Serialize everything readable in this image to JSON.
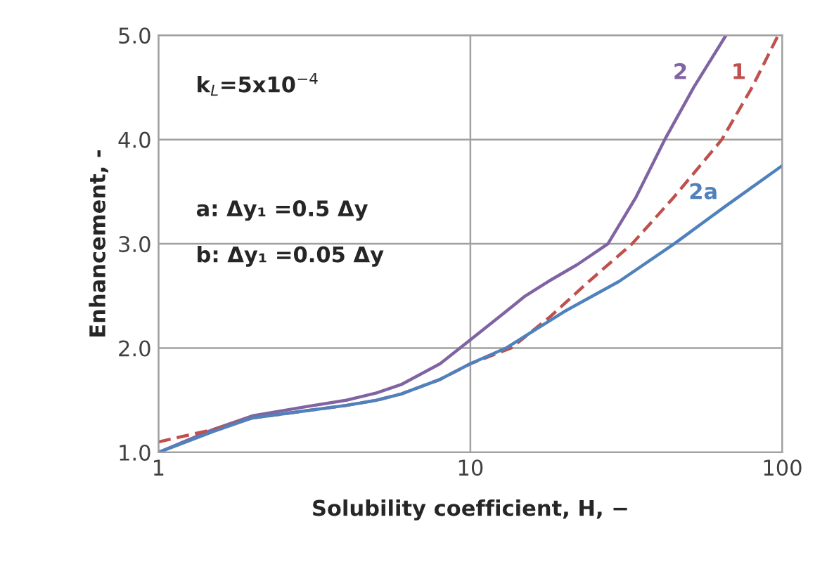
{
  "chart_data": {
    "type": "line",
    "xlabel": "Solubility coefficient, H, −",
    "ylabel": "Enhancement, -",
    "log": "x",
    "xlim": [
      1,
      100
    ],
    "xticks": [
      1,
      10,
      100
    ],
    "ylim": [
      1.0,
      5.0
    ],
    "yticks": [
      {
        "value": 1.0,
        "label": "1.0"
      },
      {
        "value": 2.0,
        "label": "2.0"
      },
      {
        "value": 3.0,
        "label": "3.0"
      },
      {
        "value": 4.0,
        "label": "4.0"
      },
      {
        "value": 5.0,
        "label": "5.0"
      }
    ],
    "grid": true,
    "legend": false,
    "annotations": [
      "k$_{L}$=5x10$^{−4}$",
      "a: Δy₁ =0.5 Δy",
      "b: Δy₁ =0.05 Δy"
    ],
    "series": [
      {
        "name": "2",
        "color": "#8064a2",
        "line_style": "solid",
        "x": [
          1,
          1.5,
          2,
          3,
          4,
          5,
          6,
          8,
          10,
          13,
          15,
          17.8,
          22,
          27.6,
          34,
          42,
          52,
          66
        ],
        "values": [
          1.0,
          1.22,
          1.35,
          1.44,
          1.5,
          1.57,
          1.65,
          1.85,
          2.08,
          2.35,
          2.5,
          2.64,
          2.8,
          3.0,
          3.45,
          4.0,
          4.5,
          5.0
        ]
      },
      {
        "name": "1",
        "color": "#c0504d",
        "line_style": "dashed",
        "x": [
          1,
          1.5,
          2,
          3,
          4,
          5,
          6,
          8,
          10,
          13.5,
          18,
          24,
          33,
          45,
          64,
          80,
          97
        ],
        "values": [
          1.1,
          1.22,
          1.33,
          1.4,
          1.45,
          1.5,
          1.56,
          1.7,
          1.85,
          2.0,
          2.3,
          2.64,
          3.0,
          3.45,
          4.0,
          4.5,
          5.0
        ]
      },
      {
        "name": "2a",
        "color": "#4f81bd",
        "line_style": "solid",
        "x": [
          1,
          1.5,
          2,
          3,
          4,
          5,
          6,
          8,
          10,
          13,
          20,
          30,
          45,
          65,
          100
        ],
        "values": [
          1.0,
          1.2,
          1.33,
          1.4,
          1.45,
          1.5,
          1.56,
          1.7,
          1.85,
          2.0,
          2.35,
          2.64,
          3.0,
          3.35,
          3.75
        ]
      }
    ]
  }
}
